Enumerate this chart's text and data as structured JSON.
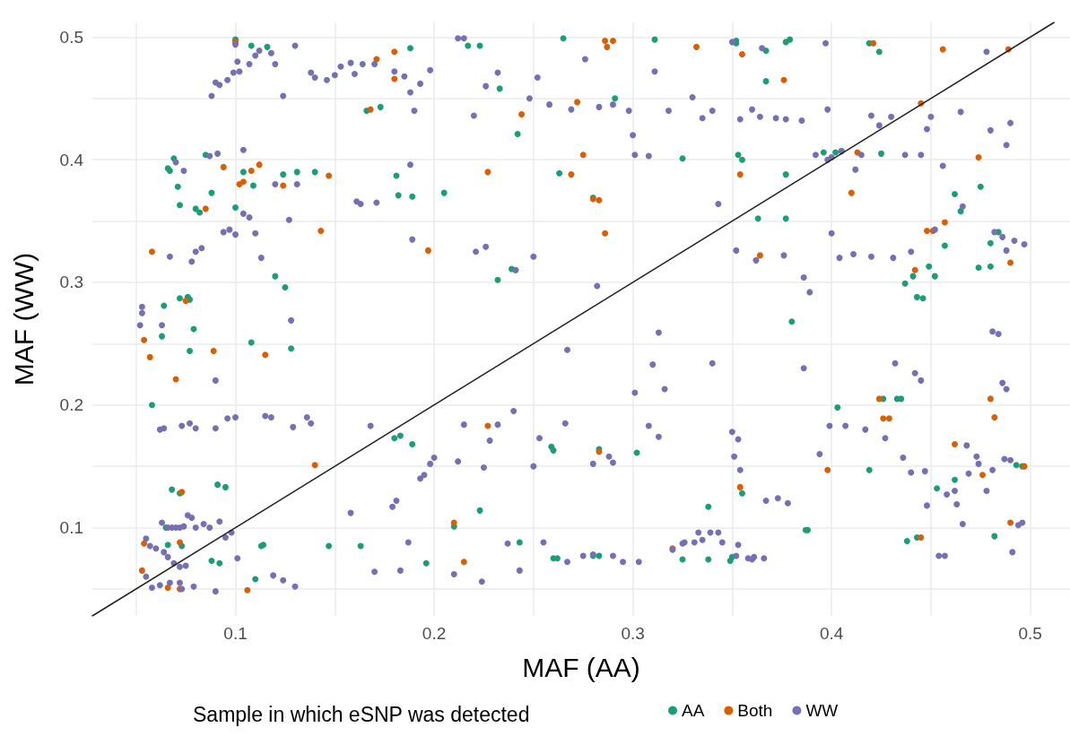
{
  "chart_data": {
    "type": "scatter",
    "xlabel": "MAF (AA)",
    "ylabel": "MAF (WW)",
    "legend_title": "Sample in which eSNP was detected",
    "legend": "bottom",
    "grid": true,
    "marker": "circle",
    "xlim": [
      0.028,
      0.52
    ],
    "ylim": [
      0.028,
      0.512
    ],
    "xticks": [
      {
        "value": 0.05,
        "label": null
      },
      0.1,
      {
        "value": 0.15,
        "label": null
      },
      0.2,
      {
        "value": 0.25,
        "label": null
      },
      0.3,
      {
        "value": 0.35,
        "label": null
      },
      0.4,
      {
        "value": 0.45,
        "label": null
      },
      0.5
    ],
    "yticks": [
      {
        "value": 0.05,
        "label": null
      },
      0.1,
      {
        "value": 0.15,
        "label": null
      },
      0.2,
      {
        "value": 0.25,
        "label": null
      },
      0.3,
      {
        "value": 0.35,
        "label": null
      },
      0.4,
      {
        "value": 0.45,
        "label": null
      },
      0.5
    ],
    "series": [
      {
        "type": "line",
        "color": "#222222",
        "marker": "none",
        "line_style": "solid",
        "x": [
          0.028,
          0.512
        ],
        "values": [
          0.028,
          0.512
        ]
      },
      {
        "name": "AA",
        "color": "#1b9e77",
        "x": [
          0.1,
          0.108,
          0.116,
          0.188,
          0.217,
          0.223,
          0.265,
          0.311,
          0.352,
          0.352,
          0.367,
          0.377,
          0.379,
          0.419,
          0.424,
          0.173,
          0.166,
          0.242,
          0.233,
          0.367,
          0.066,
          0.067,
          0.069,
          0.071,
          0.088,
          0.085,
          0.104,
          0.109,
          0.124,
          0.131,
          0.14,
          0.181,
          0.182,
          0.189,
          0.205,
          0.263,
          0.28,
          0.291,
          0.325,
          0.353,
          0.355,
          0.377,
          0.396,
          0.402,
          0.405,
          0.425,
          0.08,
          0.082,
          0.072,
          0.1,
          0.064,
          0.072,
          0.076,
          0.077,
          0.079,
          0.077,
          0.063,
          0.058,
          0.108,
          0.128,
          0.12,
          0.125,
          0.232,
          0.239,
          0.241,
          0.363,
          0.377,
          0.38,
          0.437,
          0.441,
          0.443,
          0.446,
          0.449,
          0.452,
          0.457,
          0.462,
          0.465,
          0.474,
          0.475,
          0.48,
          0.48,
          0.484,
          0.18,
          0.183,
          0.189,
          0.072,
          0.068,
          0.091,
          0.095,
          0.065,
          0.066,
          0.073,
          0.088,
          0.092,
          0.114,
          0.113,
          0.11,
          0.147,
          0.163,
          0.196,
          0.21,
          0.223,
          0.243,
          0.259,
          0.26,
          0.283,
          0.302,
          0.26,
          0.262,
          0.28,
          0.283,
          0.325,
          0.338,
          0.349,
          0.35,
          0.338,
          0.355,
          0.387,
          0.388,
          0.403,
          0.419,
          0.426,
          0.433,
          0.435,
          0.438,
          0.443,
          0.453,
          0.462,
          0.482,
          0.493,
          0.496
        ],
        "values": [
          0.498,
          0.493,
          0.492,
          0.491,
          0.493,
          0.493,
          0.499,
          0.498,
          0.497,
          0.495,
          0.489,
          0.496,
          0.498,
          0.495,
          0.488,
          0.443,
          0.44,
          0.421,
          0.458,
          0.464,
          0.393,
          0.391,
          0.401,
          0.378,
          0.373,
          0.404,
          0.39,
          0.379,
          0.388,
          0.39,
          0.39,
          0.387,
          0.371,
          0.37,
          0.373,
          0.389,
          0.369,
          0.45,
          0.401,
          0.404,
          0.4,
          0.388,
          0.406,
          0.406,
          0.407,
          0.405,
          0.36,
          0.357,
          0.363,
          0.361,
          0.281,
          0.287,
          0.288,
          0.286,
          0.262,
          0.244,
          0.256,
          0.2,
          0.251,
          0.246,
          0.305,
          0.296,
          0.302,
          0.311,
          0.31,
          0.352,
          0.352,
          0.268,
          0.299,
          0.305,
          0.288,
          0.287,
          0.313,
          0.305,
          0.33,
          0.372,
          0.358,
          0.312,
          0.378,
          0.332,
          0.313,
          0.341,
          0.173,
          0.175,
          0.168,
          0.128,
          0.131,
          0.135,
          0.133,
          0.1,
          0.086,
          0.085,
          0.073,
          0.071,
          0.086,
          0.085,
          0.058,
          0.085,
          0.085,
          0.071,
          0.101,
          0.114,
          0.088,
          0.166,
          0.163,
          0.164,
          0.161,
          0.075,
          0.075,
          0.077,
          0.077,
          0.074,
          0.074,
          0.073,
          0.076,
          0.117,
          0.128,
          0.098,
          0.098,
          0.198,
          0.147,
          0.205,
          0.205,
          0.205,
          0.089,
          0.092,
          0.132,
          0.139,
          0.093,
          0.151,
          0.15
        ]
      },
      {
        "name": "Both",
        "color": "#d95f02",
        "x": [
          0.1,
          0.171,
          0.18,
          0.18,
          0.286,
          0.29,
          0.287,
          0.332,
          0.355,
          0.376,
          0.421,
          0.456,
          0.489,
          0.168,
          0.244,
          0.272,
          0.094,
          0.102,
          0.104,
          0.108,
          0.112,
          0.124,
          0.147,
          0.227,
          0.269,
          0.275,
          0.28,
          0.354,
          0.41,
          0.413,
          0.445,
          0.474,
          0.283,
          0.085,
          0.143,
          0.197,
          0.286,
          0.058,
          0.075,
          0.054,
          0.057,
          0.07,
          0.089,
          0.115,
          0.364,
          0.442,
          0.457,
          0.49,
          0.14,
          0.054,
          0.053,
          0.066,
          0.072,
          0.073,
          0.072,
          0.106,
          0.21,
          0.215,
          0.227,
          0.283,
          0.32,
          0.354,
          0.398,
          0.424,
          0.426,
          0.429,
          0.445,
          0.448,
          0.451,
          0.462,
          0.476,
          0.48,
          0.482,
          0.49,
          0.497
        ],
        "values": [
          0.496,
          0.482,
          0.488,
          0.466,
          0.497,
          0.497,
          0.492,
          0.492,
          0.486,
          0.465,
          0.495,
          0.49,
          0.49,
          0.441,
          0.437,
          0.447,
          0.394,
          0.38,
          0.382,
          0.391,
          0.396,
          0.379,
          0.387,
          0.39,
          0.388,
          0.404,
          0.368,
          0.388,
          0.373,
          0.406,
          0.446,
          0.402,
          0.367,
          0.36,
          0.342,
          0.326,
          0.34,
          0.325,
          0.285,
          0.253,
          0.239,
          0.221,
          0.244,
          0.241,
          0.322,
          0.31,
          0.349,
          0.316,
          0.151,
          0.087,
          0.065,
          0.051,
          0.05,
          0.129,
          0.088,
          0.049,
          0.104,
          0.072,
          0.183,
          0.162,
          0.083,
          0.133,
          0.147,
          0.205,
          0.189,
          0.189,
          0.092,
          0.342,
          0.342,
          0.168,
          0.143,
          0.205,
          0.19,
          0.104,
          0.15
        ]
      },
      {
        "name": "WW",
        "color": "#7570b3",
        "x": [
          0.088,
          0.09,
          0.092,
          0.096,
          0.099,
          0.1,
          0.101,
          0.102,
          0.107,
          0.11,
          0.112,
          0.118,
          0.12,
          0.124,
          0.13,
          0.138,
          0.14,
          0.146,
          0.15,
          0.153,
          0.158,
          0.16,
          0.164,
          0.17,
          0.18,
          0.185,
          0.188,
          0.19,
          0.193,
          0.198,
          0.212,
          0.215,
          0.22,
          0.226,
          0.232,
          0.248,
          0.252,
          0.258,
          0.269,
          0.276,
          0.283,
          0.29,
          0.298,
          0.3,
          0.301,
          0.308,
          0.311,
          0.318,
          0.33,
          0.335,
          0.34,
          0.343,
          0.35,
          0.354,
          0.36,
          0.364,
          0.372,
          0.377,
          0.385,
          0.392,
          0.398,
          0.4,
          0.405,
          0.415,
          0.42,
          0.424,
          0.43,
          0.437,
          0.445,
          0.448,
          0.45,
          0.456,
          0.465,
          0.478,
          0.48,
          0.488,
          0.49,
          0.365,
          0.397,
          0.412,
          0.398,
          0.067,
          0.07,
          0.074,
          0.078,
          0.08,
          0.083,
          0.087,
          0.091,
          0.094,
          0.097,
          0.1,
          0.104,
          0.104,
          0.107,
          0.11,
          0.113,
          0.12,
          0.127,
          0.128,
          0.131,
          0.161,
          0.163,
          0.171,
          0.188,
          0.189,
          0.221,
          0.226,
          0.241,
          0.25,
          0.282,
          0.053,
          0.053,
          0.052,
          0.063,
          0.09,
          0.362,
          0.376,
          0.386,
          0.389,
          0.4,
          0.404,
          0.411,
          0.42,
          0.431,
          0.44,
          0.452,
          0.466,
          0.482,
          0.486,
          0.488,
          0.492,
          0.497,
          0.481,
          0.484,
          0.488,
          0.486,
          0.442,
          0.445,
          0.432,
          0.386,
          0.34,
          0.301,
          0.31,
          0.313,
          0.316,
          0.267,
          0.352,
          0.062,
          0.064,
          0.073,
          0.077,
          0.08,
          0.09,
          0.096,
          0.1,
          0.115,
          0.118,
          0.129,
          0.136,
          0.138,
          0.158,
          0.168,
          0.179,
          0.181,
          0.193,
          0.195,
          0.198,
          0.2,
          0.212,
          0.215,
          0.225,
          0.228,
          0.232,
          0.24,
          0.25,
          0.253,
          0.266,
          0.28,
          0.288,
          0.29,
          0.308,
          0.313,
          0.063,
          0.066,
          0.068,
          0.07,
          0.072,
          0.074,
          0.076,
          0.078,
          0.08,
          0.084,
          0.087,
          0.092,
          0.095,
          0.098,
          0.055,
          0.057,
          0.06,
          0.064,
          0.066,
          0.069,
          0.072,
          0.075,
          0.055,
          0.058,
          0.062,
          0.067,
          0.072,
          0.073,
          0.079,
          0.09,
          0.101,
          0.119,
          0.124,
          0.13,
          0.17,
          0.183,
          0.187,
          0.21,
          0.224,
          0.237,
          0.243,
          0.255,
          0.267,
          0.275,
          0.28,
          0.29,
          0.295,
          0.303,
          0.32,
          0.326,
          0.331,
          0.335,
          0.339,
          0.343,
          0.345,
          0.353,
          0.352,
          0.358,
          0.361,
          0.367,
          0.373,
          0.378,
          0.35,
          0.353,
          0.351,
          0.354,
          0.325,
          0.333,
          0.36,
          0.407,
          0.417,
          0.427,
          0.436,
          0.458,
          0.462,
          0.469,
          0.474,
          0.481,
          0.487,
          0.49,
          0.494,
          0.496,
          0.491,
          0.457,
          0.454,
          0.466,
          0.478,
          0.447,
          0.44,
          0.448,
          0.463,
          0.468,
          0.473,
          0.394,
          0.399,
          0.366
        ],
        "values": [
          0.452,
          0.463,
          0.461,
          0.465,
          0.471,
          0.494,
          0.48,
          0.472,
          0.478,
          0.485,
          0.489,
          0.487,
          0.478,
          0.452,
          0.493,
          0.471,
          0.467,
          0.465,
          0.469,
          0.476,
          0.479,
          0.47,
          0.478,
          0.478,
          0.472,
          0.468,
          0.455,
          0.44,
          0.462,
          0.473,
          0.499,
          0.499,
          0.436,
          0.46,
          0.471,
          0.45,
          0.467,
          0.445,
          0.441,
          0.482,
          0.443,
          0.445,
          0.44,
          0.42,
          0.404,
          0.403,
          0.472,
          0.44,
          0.451,
          0.434,
          0.44,
          0.364,
          0.496,
          0.433,
          0.441,
          0.435,
          0.434,
          0.433,
          0.432,
          0.404,
          0.441,
          0.402,
          0.407,
          0.404,
          0.436,
          0.428,
          0.435,
          0.404,
          0.404,
          0.425,
          0.435,
          0.395,
          0.439,
          0.488,
          0.424,
          0.412,
          0.43,
          0.491,
          0.495,
          0.392,
          0.4,
          0.321,
          0.398,
          0.391,
          0.317,
          0.325,
          0.328,
          0.403,
          0.405,
          0.341,
          0.343,
          0.339,
          0.408,
          0.356,
          0.353,
          0.34,
          0.32,
          0.38,
          0.351,
          0.269,
          0.38,
          0.366,
          0.364,
          0.365,
          0.396,
          0.335,
          0.325,
          0.329,
          0.31,
          0.321,
          0.297,
          0.28,
          0.275,
          0.265,
          0.265,
          0.22,
          0.318,
          0.322,
          0.304,
          0.292,
          0.34,
          0.32,
          0.323,
          0.321,
          0.32,
          0.325,
          0.343,
          0.362,
          0.341,
          0.337,
          0.326,
          0.334,
          0.331,
          0.26,
          0.258,
          0.213,
          0.218,
          0.226,
          0.22,
          0.234,
          0.23,
          0.234,
          0.21,
          0.233,
          0.259,
          0.213,
          0.245,
          0.326,
          0.18,
          0.181,
          0.183,
          0.185,
          0.181,
          0.181,
          0.189,
          0.19,
          0.191,
          0.19,
          0.182,
          0.19,
          0.185,
          0.112,
          0.183,
          0.117,
          0.122,
          0.14,
          0.143,
          0.152,
          0.157,
          0.154,
          0.184,
          0.149,
          0.171,
          0.184,
          0.195,
          0.15,
          0.173,
          0.185,
          0.152,
          0.158,
          0.153,
          0.183,
          0.174,
          0.104,
          0.1,
          0.1,
          0.1,
          0.1,
          0.101,
          0.11,
          0.108,
          0.1,
          0.103,
          0.1,
          0.105,
          0.092,
          0.096,
          0.091,
          0.085,
          0.083,
          0.08,
          0.076,
          0.071,
          0.068,
          0.069,
          0.06,
          0.051,
          0.053,
          0.055,
          0.055,
          0.05,
          0.052,
          0.048,
          0.075,
          0.061,
          0.057,
          0.052,
          0.064,
          0.065,
          0.088,
          0.062,
          0.056,
          0.087,
          0.065,
          0.088,
          0.072,
          0.077,
          0.078,
          0.077,
          0.072,
          0.072,
          0.082,
          0.088,
          0.088,
          0.09,
          0.096,
          0.096,
          0.088,
          0.086,
          0.077,
          0.075,
          0.076,
          0.122,
          0.124,
          0.12,
          0.178,
          0.172,
          0.158,
          0.147,
          0.087,
          0.096,
          0.074,
          0.183,
          0.18,
          0.173,
          0.157,
          0.127,
          0.13,
          0.144,
          0.152,
          0.147,
          0.156,
          0.155,
          0.102,
          0.104,
          0.08,
          0.077,
          0.077,
          0.103,
          0.13,
          0.146,
          0.145,
          0.118,
          0.119,
          0.167,
          0.158,
          0.16,
          0.183,
          0.075
        ]
      }
    ]
  }
}
